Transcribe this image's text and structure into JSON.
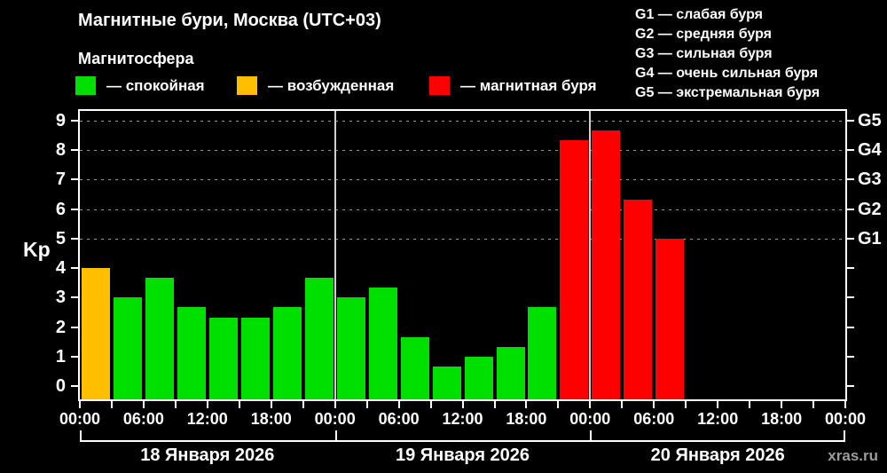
{
  "title": "Магнитные бури, Москва (UTC+03)",
  "subtitle": "Магнитосфера",
  "activity_legend": [
    {
      "name": "quiet",
      "label": "— спокойная",
      "color": "#00e000"
    },
    {
      "name": "excited",
      "label": "— возбужденная",
      "color": "#ffbf00"
    },
    {
      "name": "storm",
      "label": "— магнитная буря",
      "color": "#ff0000"
    }
  ],
  "storm_scale_legend": [
    "G1 — слабая буря",
    "G2 — средняя буря",
    "G3 — сильная буря",
    "G4 — очень сильная буря",
    "G5 — экстремальная буря"
  ],
  "watermark": "xras.ru",
  "chart_data": {
    "type": "bar",
    "ylabel": "Kp",
    "ylim": [
      0,
      9
    ],
    "plot_value_range": [
      -0.45,
      9.33
    ],
    "y_ticks": [
      0,
      1,
      2,
      3,
      4,
      5,
      6,
      7,
      8,
      9
    ],
    "gridlines_at": [
      5,
      6,
      7,
      8,
      9
    ],
    "grid_color": "#9a9a9a",
    "right_axis_labels": [
      {
        "value": 9,
        "label": "G5"
      },
      {
        "value": 8,
        "label": "G4"
      },
      {
        "value": 7,
        "label": "G3"
      },
      {
        "value": 6,
        "label": "G2"
      },
      {
        "value": 5,
        "label": "G1"
      }
    ],
    "x_time_labels": [
      "00:00",
      "06:00",
      "12:00",
      "18:00",
      "00:00",
      "06:00",
      "12:00",
      "18:00",
      "00:00",
      "06:00",
      "12:00",
      "18:00",
      "00:00"
    ],
    "hours_per_bar": 3,
    "status_colors": {
      "quiet": "#00e000",
      "excited": "#ffbf00",
      "storm": "#ff0000"
    },
    "days": [
      {
        "label": "18 Января 2026",
        "values": [
          4.0,
          3.0,
          3.67,
          2.67,
          2.33,
          2.33,
          2.67,
          3.67
        ],
        "statuses": [
          "excited",
          "quiet",
          "quiet",
          "quiet",
          "quiet",
          "quiet",
          "quiet",
          "quiet"
        ]
      },
      {
        "label": "19 Января 2026",
        "values": [
          3.0,
          3.33,
          1.67,
          0.67,
          1.0,
          1.33,
          2.67,
          8.33
        ],
        "statuses": [
          "quiet",
          "quiet",
          "quiet",
          "quiet",
          "quiet",
          "quiet",
          "quiet",
          "storm"
        ]
      },
      {
        "label": "20 Января 2026",
        "values": [
          8.67,
          6.33,
          5.0,
          null,
          null,
          null,
          null,
          null
        ],
        "statuses": [
          "storm",
          "storm",
          "storm",
          null,
          null,
          null,
          null,
          null
        ]
      }
    ]
  }
}
